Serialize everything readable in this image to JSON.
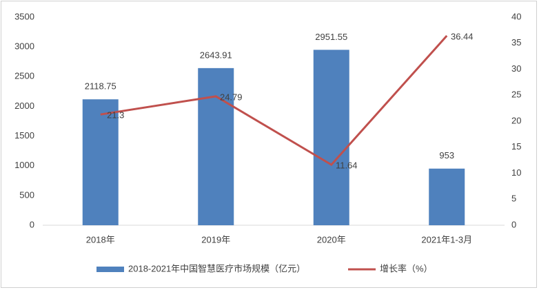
{
  "chart_data": {
    "type": "bar",
    "categories": [
      "2018年",
      "2019年",
      "2020年",
      "2021年1-3月"
    ],
    "series": [
      {
        "name": "2018-2021年中国智慧医疗市场规模（亿元）",
        "type": "bar",
        "color": "#4f81bd",
        "values": [
          2118.75,
          2643.91,
          2951.55,
          953
        ]
      },
      {
        "name": "增长率（%）",
        "type": "line",
        "axis": "y2",
        "color": "#c0504d",
        "values": [
          21.3,
          24.79,
          11.64,
          36.44
        ]
      }
    ],
    "ylim": [
      0,
      3500
    ],
    "yticks": [
      0,
      500,
      1000,
      1500,
      2000,
      2500,
      3000,
      3500
    ],
    "y2lim": [
      0,
      40
    ],
    "y2ticks": [
      0,
      5,
      10,
      15,
      20,
      25,
      30,
      35,
      40
    ],
    "grid": false,
    "legend": "bottom"
  }
}
